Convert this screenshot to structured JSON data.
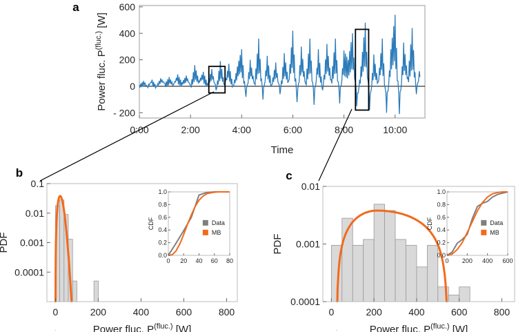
{
  "chart_data": [
    {
      "panel": "a",
      "type": "line",
      "xlabel": "Time",
      "ylabel_main": "Power fluc. P",
      "ylabel_sup": "(fluc.)",
      "ylabel_unit": "[W]",
      "xlim": [
        0,
        670
      ],
      "ylim": [
        -240,
        610
      ],
      "xticks": [
        {
          "v": 0,
          "label": "0:00"
        },
        {
          "v": 120,
          "label": "2:00"
        },
        {
          "v": 240,
          "label": "4:00"
        },
        {
          "v": 360,
          "label": "6:00"
        },
        {
          "v": 480,
          "label": "8:00"
        },
        {
          "v": 600,
          "label": "10:00"
        }
      ],
      "yticks": [
        {
          "v": -200,
          "label": "- 200"
        },
        {
          "v": 0,
          "label": "0"
        },
        {
          "v": 200,
          "label": "200"
        },
        {
          "v": 400,
          "label": "400"
        },
        {
          "v": 600,
          "label": "600"
        }
      ],
      "series_color": "#2b7bba",
      "series": [
        {
          "x": [
            0,
            10,
            20,
            30,
            40,
            50,
            60,
            70,
            80,
            90,
            100,
            110,
            120,
            130,
            140,
            150,
            160,
            170,
            180,
            190,
            200,
            210,
            220,
            230,
            240,
            250,
            260,
            270,
            280,
            290,
            300,
            310,
            320,
            330,
            340,
            350,
            360,
            370,
            380,
            390,
            400,
            410,
            420,
            430,
            440,
            450,
            460,
            470,
            480,
            490,
            500,
            510,
            520,
            530,
            540,
            550,
            560,
            570,
            580,
            590,
            600,
            610,
            620,
            630,
            640,
            650,
            660
          ],
          "y": [
            10,
            40,
            -10,
            50,
            0,
            60,
            20,
            70,
            10,
            90,
            30,
            80,
            0,
            160,
            40,
            110,
            20,
            130,
            -30,
            190,
            10,
            170,
            0,
            150,
            280,
            -80,
            200,
            20,
            360,
            -100,
            230,
            10,
            180,
            -60,
            250,
            40,
            420,
            -120,
            300,
            20,
            360,
            -140,
            280,
            -30,
            320,
            50,
            360,
            -130,
            270,
            200,
            400,
            -150,
            150,
            480,
            -180,
            240,
            30,
            360,
            -200,
            280,
            540,
            -210,
            330,
            70,
            440,
            -60,
            200
          ]
        }
      ],
      "annotation_boxes": [
        {
          "x0": 163,
          "x1": 201,
          "y0": -50,
          "y1": 150
        },
        {
          "x0": 507,
          "x1": 538,
          "y0": -180,
          "y1": 430
        }
      ]
    },
    {
      "panel": "b",
      "type": "bar",
      "xlabel_main": "Power fluc. P",
      "xlabel_sup": "(fluc.)",
      "xlabel_unit": "[W]",
      "ylabel": "PDF",
      "yscale": "log",
      "xlim": [
        -40,
        850
      ],
      "ylim": [
        1e-05,
        0.1
      ],
      "xticks": [
        0,
        200,
        400,
        600,
        800
      ],
      "yticks": [
        {
          "v": 0.1,
          "label": "0.1"
        },
        {
          "v": 0.01,
          "label": "0.01"
        },
        {
          "v": 0.001,
          "label": "0.001"
        },
        {
          "v": 0.0001,
          "label": "0.0001"
        }
      ],
      "histogram": {
        "bin_width": 20,
        "bins": [
          {
            "x0": 0,
            "v": 0.018
          },
          {
            "x0": 20,
            "v": 0.028
          },
          {
            "x0": 40,
            "v": 0.009
          },
          {
            "x0": 60,
            "v": 0.0013
          },
          {
            "x0": 80,
            "v": 5e-05
          },
          {
            "x0": 180,
            "v": 5e-05
          }
        ]
      },
      "fit": {
        "name": "MB",
        "color": "#f26a1b",
        "scale_a": 15.5,
        "norm": 1.0,
        "x_range": [
          0,
          78
        ]
      },
      "inset": {
        "type": "line",
        "ylabel": "CDF",
        "xlim": [
          0,
          80
        ],
        "ylim": [
          0,
          1
        ],
        "xticks": [
          0,
          20,
          40,
          60,
          80
        ],
        "yticks": [
          {
            "v": 0,
            "label": "0.0"
          },
          {
            "v": 0.2,
            "label": "0.2"
          },
          {
            "v": 0.4,
            "label": "0.4"
          },
          {
            "v": 0.6,
            "label": "0.6"
          },
          {
            "v": 0.8,
            "label": "0.8"
          },
          {
            "v": 1,
            "label": "1.0"
          }
        ],
        "legend": [
          {
            "name": "Data",
            "color": "#7f7f7f"
          },
          {
            "name": "MB",
            "color": "#f26a1b"
          }
        ],
        "data": {
          "x": [
            0,
            10,
            20,
            30,
            40,
            50,
            60,
            70,
            80
          ],
          "y": [
            0,
            0.19,
            0.39,
            0.6,
            0.95,
            0.99,
            1,
            1,
            1
          ]
        },
        "mb": {
          "x": [
            0,
            5,
            10,
            15,
            20,
            25,
            30,
            35,
            40,
            45,
            50,
            55,
            60,
            65,
            70,
            75,
            80
          ],
          "y": [
            0,
            0.01,
            0.07,
            0.18,
            0.33,
            0.49,
            0.64,
            0.77,
            0.87,
            0.93,
            0.97,
            0.985,
            0.995,
            1,
            1,
            1,
            1
          ]
        }
      }
    },
    {
      "panel": "c",
      "type": "bar",
      "xlabel_main": "Power fluc. P",
      "xlabel_sup": "(fluc.)",
      "xlabel_unit": "[W]",
      "ylabel": "PDF",
      "yscale": "log",
      "xlim": [
        -40,
        860
      ],
      "ylim": [
        0.0001,
        0.01
      ],
      "xticks": [
        0,
        200,
        400,
        600,
        800
      ],
      "yticks": [
        {
          "v": 0.01,
          "label": "0.01"
        },
        {
          "v": 0.001,
          "label": "0.001"
        },
        {
          "v": 0.0001,
          "label": "0.0001"
        }
      ],
      "histogram": {
        "bin_width": 50,
        "bins": [
          {
            "x0": 0,
            "v": 0.00095
          },
          {
            "x0": 50,
            "v": 0.0028
          },
          {
            "x0": 100,
            "v": 0.00095
          },
          {
            "x0": 150,
            "v": 0.0012
          },
          {
            "x0": 200,
            "v": 0.0049
          },
          {
            "x0": 250,
            "v": 0.0038
          },
          {
            "x0": 300,
            "v": 0.0012
          },
          {
            "x0": 350,
            "v": 0.00095
          },
          {
            "x0": 400,
            "v": 0.0004
          },
          {
            "x0": 450,
            "v": 0.00095
          },
          {
            "x0": 500,
            "v": 0.00018
          },
          {
            "x0": 550,
            "v": 0.00013
          },
          {
            "x0": 600,
            "v": 0.00018
          }
        ]
      },
      "fit": {
        "name": "MB",
        "color": "#f26a1b",
        "peak_x": 215,
        "peak_v": 0.0038,
        "x_range": [
          25,
          545
        ]
      },
      "inset": {
        "type": "line",
        "ylabel": "CDF",
        "xlim": [
          0,
          600
        ],
        "ylim": [
          0,
          1
        ],
        "xticks": [
          0,
          200,
          400,
          600
        ],
        "yticks": [
          {
            "v": 0,
            "label": "0.0"
          },
          {
            "v": 0.2,
            "label": "0.2"
          },
          {
            "v": 0.4,
            "label": "0.4"
          },
          {
            "v": 0.6,
            "label": "0.6"
          },
          {
            "v": 0.8,
            "label": "0.8"
          },
          {
            "v": 1,
            "label": "1.0"
          }
        ],
        "legend": [
          {
            "name": "Data",
            "color": "#7f7f7f"
          },
          {
            "name": "MB",
            "color": "#f26a1b"
          }
        ],
        "data": {
          "x": [
            0,
            50,
            100,
            150,
            200,
            250,
            300,
            350,
            400,
            450,
            500,
            550,
            600
          ],
          "y": [
            0,
            0.05,
            0.19,
            0.25,
            0.33,
            0.58,
            0.77,
            0.82,
            0.85,
            0.92,
            0.96,
            0.98,
            1
          ]
        },
        "mb": {
          "x": [
            0,
            50,
            100,
            150,
            200,
            250,
            300,
            350,
            400,
            450,
            500,
            550,
            600
          ],
          "y": [
            0,
            0.02,
            0.09,
            0.2,
            0.36,
            0.53,
            0.7,
            0.83,
            0.92,
            0.97,
            0.99,
            1,
            1
          ]
        }
      }
    }
  ]
}
